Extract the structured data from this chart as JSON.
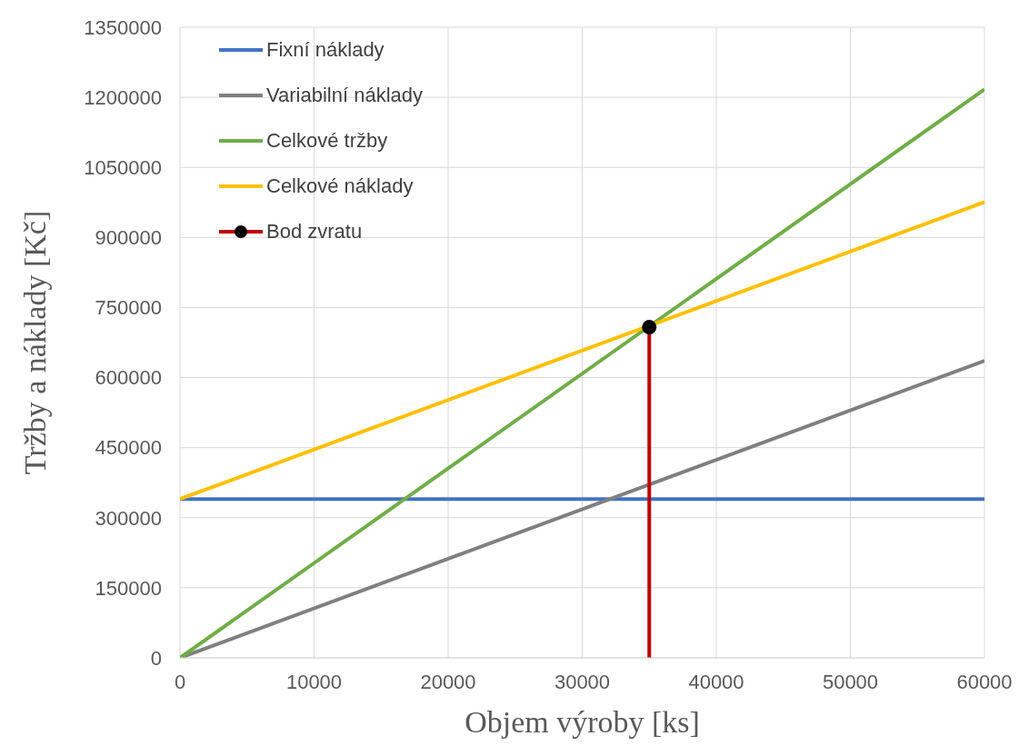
{
  "chart_data": {
    "type": "line",
    "xlabel": "Objem výroby [ks]",
    "ylabel": "Tržby a náklady [Kč]",
    "xlim": [
      0,
      60000
    ],
    "xticks": [
      0,
      10000,
      20000,
      30000,
      40000,
      50000,
      60000
    ],
    "ylim": [
      0,
      1350000
    ],
    "yticks": [
      0,
      150000,
      300000,
      450000,
      600000,
      750000,
      900000,
      1050000,
      1200000,
      1350000
    ],
    "grid": true,
    "legend": "top left",
    "marker": "none",
    "series": [
      {
        "name": "Fixní náklady",
        "color": "#4472c4",
        "x": [
          0,
          60000
        ],
        "values": [
          340000,
          340000
        ]
      },
      {
        "name": "Variabilní náklady",
        "color": "#808080",
        "x": [
          0,
          60000
        ],
        "values": [
          0,
          636000
        ]
      },
      {
        "name": "Celkové tržby",
        "color": "#70ad47",
        "x": [
          0,
          60000
        ],
        "values": [
          0,
          1217000
        ]
      },
      {
        "name": "Celkové náklady",
        "color": "#ffc000",
        "x": [
          0,
          60000
        ],
        "values": [
          340000,
          976000
        ]
      },
      {
        "name": "Bod zvratu",
        "color": "#c00000",
        "x": [
          35000,
          35000
        ],
        "values": [
          0,
          708000
        ]
      },
      {
        "type": "scatter",
        "marker": "circle",
        "color": "#000000",
        "x": [
          35000
        ],
        "values": [
          708000
        ]
      }
    ]
  }
}
